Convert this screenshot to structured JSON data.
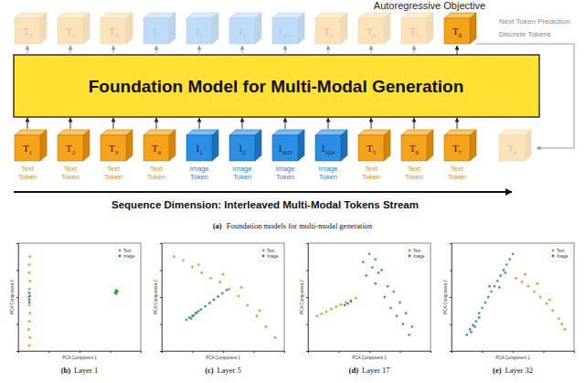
{
  "diagram": {
    "title": "Autoregressive Objective",
    "model": "Foundation Model for Multi-Modal Generation",
    "side_labels": [
      "Next Token Prediction",
      "Discrete Tokens"
    ],
    "outputs": [
      {
        "symbol": "T",
        "index": "2",
        "kind": "text"
      },
      {
        "symbol": "T",
        "index": "3",
        "kind": "text"
      },
      {
        "symbol": "T",
        "index": "4",
        "kind": "text"
      },
      {
        "symbol": "I",
        "index": "1",
        "kind": "image"
      },
      {
        "symbol": "I",
        "index": "2",
        "kind": "image"
      },
      {
        "symbol": "I",
        "index": "3",
        "kind": "image"
      },
      {
        "symbol": "I",
        "index": "1024",
        "kind": "image"
      },
      {
        "symbol": "T",
        "index": "5",
        "kind": "text"
      },
      {
        "symbol": "T",
        "index": "6",
        "kind": "text"
      },
      {
        "symbol": "T",
        "index": "7",
        "kind": "text"
      }
    ],
    "prediction": {
      "symbol": "T",
      "index": "8",
      "kind": "text"
    },
    "inputs": [
      {
        "symbol": "T",
        "index": "1",
        "kind": "text",
        "label": "Text Token"
      },
      {
        "symbol": "T",
        "index": "2",
        "kind": "text",
        "label": "Text Token"
      },
      {
        "symbol": "T",
        "index": "3",
        "kind": "text",
        "label": "Text Token"
      },
      {
        "symbol": "T",
        "index": "4",
        "kind": "text",
        "label": "Text Token"
      },
      {
        "symbol": "I",
        "index": "1",
        "kind": "image",
        "label": "Image Token"
      },
      {
        "symbol": "I",
        "index": "2",
        "kind": "image",
        "label": "Image Token"
      },
      {
        "symbol": "I",
        "index": "1023",
        "kind": "image",
        "label": "Image Token"
      },
      {
        "symbol": "I",
        "index": "1024",
        "kind": "image",
        "label": "Image Token"
      },
      {
        "symbol": "T",
        "index": "5",
        "kind": "text",
        "label": "Text Token"
      },
      {
        "symbol": "T",
        "index": "6",
        "kind": "text",
        "label": "Text Token"
      },
      {
        "symbol": "T",
        "index": "7",
        "kind": "text",
        "label": "Text Token"
      }
    ],
    "fed_back": {
      "symbol": "T",
      "index": "8",
      "kind": "text"
    },
    "axis_label": "Sequence Dimension: Interleaved Multi-Modal Tokens Stream",
    "caption": {
      "label": "(a)",
      "text": "Foundation models for multi-modal generation"
    }
  },
  "chart_data": [
    {
      "type": "scatter",
      "panel": "(b)",
      "title": "Layer 1",
      "xlabel": "PCA Component 1",
      "ylabel": "PCA Component 2",
      "xlim": [
        -10,
        10
      ],
      "ylim": [
        -10,
        10
      ],
      "xticks": [
        -10,
        -5,
        0,
        5,
        10
      ],
      "yticks": [
        -10,
        -5,
        0,
        5,
        10
      ],
      "tick_labels": false,
      "legend": "upper right",
      "marker": "circle",
      "series": [
        {
          "name": "Text",
          "color": "#ff7f0e",
          "x": [
            -8.2,
            -8.1,
            -8.3,
            -8.2,
            -8.1,
            -8.2,
            -8.3,
            -8.2,
            -8.1,
            -8.2,
            -8.2,
            -8.1
          ],
          "values": [
            -9,
            -7.5,
            -6,
            -4.5,
            -3,
            -1.5,
            0,
            1.5,
            3,
            4.5,
            6,
            7.5
          ]
        },
        {
          "name": "Image",
          "color": "#1f77b4",
          "x": [
            -8.2,
            -8.1,
            -8.2,
            -8.2
          ],
          "values": [
            -0.5,
            0.2,
            0.8,
            -1
          ]
        },
        {
          "color": "#2ca02c",
          "x": [
            5.8,
            6.1,
            6.0,
            5.9,
            6.2,
            6.0
          ],
          "values": [
            0.8,
            1.1,
            1.3,
            0.9,
            1.0,
            0.6
          ]
        }
      ]
    },
    {
      "type": "scatter",
      "panel": "(c)",
      "title": "Layer 5",
      "xlabel": "PCA Component 1",
      "ylabel": "PCA Component 2",
      "xlim": [
        -10,
        10
      ],
      "ylim": [
        -10,
        10
      ],
      "xticks": [
        -10,
        -5,
        0,
        5,
        10
      ],
      "yticks": [
        -10,
        -5,
        0,
        5,
        10
      ],
      "tick_labels": false,
      "legend": "upper right",
      "marker": "circle",
      "series": [
        {
          "name": "Text",
          "color": "#ff7f0e",
          "x": [
            -8,
            -6.5,
            -5,
            -3.5,
            -2,
            -0.5,
            1,
            2.5,
            4,
            5.5,
            7,
            8.5,
            -4,
            0,
            3,
            6
          ],
          "values": [
            7.5,
            6.8,
            5.6,
            4.5,
            3.5,
            2.8,
            1.5,
            0.2,
            -1.5,
            -3.5,
            -5.5,
            -7.5,
            6,
            4.2,
            1.8,
            -2.5
          ]
        },
        {
          "name": "Image",
          "color": "#1f77b4",
          "x": [
            -5,
            -4.3,
            -3.6,
            -2.9,
            -2.2,
            -1.5,
            -0.8,
            -0.1,
            0.6
          ],
          "values": [
            -3.5,
            -2.9,
            -2.3,
            -1.7,
            -1.1,
            -0.5,
            0.1,
            0.7,
            1.3
          ]
        },
        {
          "color": "#2ca02c",
          "x": [
            -6,
            -5.5,
            -5.2,
            -4.8,
            -4.5,
            -4
          ],
          "values": [
            -4.2,
            -3.8,
            -4.0,
            -3.4,
            -3.0,
            -2.6
          ]
        }
      ]
    },
    {
      "type": "scatter",
      "panel": "(d)",
      "title": "Layer 17",
      "xlabel": "PCA Component 1",
      "ylabel": "PCA Component 2",
      "xlim": [
        -10,
        10
      ],
      "ylim": [
        -10,
        10
      ],
      "xticks": [
        -10,
        -5,
        0,
        5,
        10
      ],
      "yticks": [
        -10,
        -5,
        0,
        5,
        10
      ],
      "tick_labels": false,
      "legend": "upper right",
      "marker": "circle",
      "series": [
        {
          "name": "Text",
          "color": "#ff7f0e",
          "x": [
            -8.5,
            -7.8,
            -7,
            -6.2,
            -5.4,
            -4.6,
            -3.8,
            -3,
            -2.2
          ],
          "values": [
            -3.5,
            -3.1,
            -2.7,
            -2.2,
            -1.8,
            -1.4,
            -1,
            -0.6,
            -0.2
          ]
        },
        {
          "name": "Image",
          "color": "#1f77b4",
          "x": [
            -4,
            -3.5,
            -3
          ],
          "values": [
            -1.5,
            -1.2,
            -0.8
          ]
        },
        {
          "color": "#2ca02c",
          "x": [
            -1,
            0,
            0.5,
            1,
            1.5,
            -0.5,
            2,
            3,
            2.5,
            4,
            3.5,
            5,
            4.5,
            6,
            5.5,
            7,
            1,
            6.5
          ],
          "values": [
            6.5,
            8,
            5.5,
            7,
            4.5,
            4,
            5,
            2,
            0,
            1,
            -2,
            -1,
            -3.5,
            -3,
            -5,
            -5.5,
            2.5,
            -7
          ]
        }
      ]
    },
    {
      "type": "scatter",
      "panel": "(e)",
      "title": "Layer 32",
      "xlabel": "PCA Component 1",
      "ylabel": "PCA Component 2",
      "xlim": [
        -10,
        10
      ],
      "ylim": [
        -10,
        10
      ],
      "xticks": [
        -10,
        -5,
        0,
        5,
        10
      ],
      "yticks": [
        -10,
        -5,
        0,
        5,
        10
      ],
      "tick_labels": false,
      "legend": "upper right",
      "marker": "circle",
      "series": [
        {
          "name": "Text",
          "color": "#ff7f0e",
          "x": [
            0.5,
            1.5,
            2.5,
            3.5,
            4.5,
            5.5,
            6.5,
            7.5,
            8.5,
            2,
            4,
            6,
            8
          ],
          "values": [
            3.5,
            2.8,
            2,
            1,
            0,
            -1.2,
            -2.5,
            -4,
            -6,
            4.2,
            2.5,
            -0.5,
            -5
          ]
        },
        {
          "name": "Image",
          "color": "#1f77b4",
          "x": [
            -7.5,
            -7,
            -6.5,
            -6.8,
            -6,
            -5.5,
            -6.2
          ],
          "values": [
            -7,
            -6,
            -5.2,
            -6.5,
            -4.5,
            -3.8,
            -5.5
          ]
        },
        {
          "color": "#2ca02c",
          "x": [
            -5.5,
            -5,
            -4.5,
            -4,
            -3.5,
            -3,
            -2.5,
            -2,
            -1.5,
            -1,
            -0.5,
            0,
            -3.8,
            -2.2,
            -1.2
          ],
          "values": [
            -3,
            -2,
            -1,
            0,
            1,
            2,
            3,
            4,
            5,
            6,
            7,
            8,
            2,
            1.8,
            4.5
          ]
        }
      ]
    }
  ]
}
